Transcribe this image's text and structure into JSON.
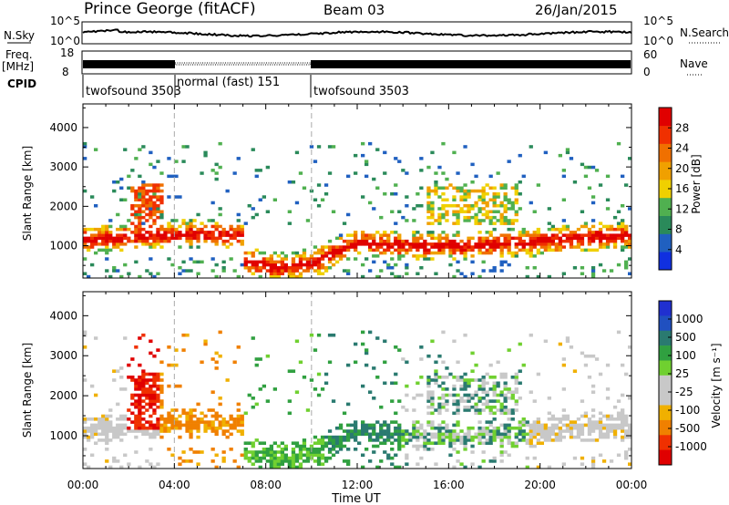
{
  "header": {
    "station": "Prince George (fitACF)",
    "beam": "Beam 03",
    "date": "26/Jan/2015"
  },
  "top_panel": {
    "left_labels": {
      "nsky": "N.Sky",
      "freq_line1": "Freq.",
      "freq_line2": "[MHz]",
      "cpid": "CPID"
    },
    "right_labels": {
      "nsearch": "N.Search",
      "nave": "Nave"
    },
    "nsky_ticks": [
      "10^5",
      "10^0"
    ],
    "freq_ticks": [
      "18",
      "8"
    ],
    "nave_ticks": [
      "60",
      "0"
    ],
    "cpid_segments": [
      {
        "label": "twofsound 3503",
        "start_hour": 0,
        "end_hour": 4
      },
      {
        "label": "normal (fast) 151",
        "start_hour": 4,
        "end_hour": 10
      },
      {
        "label": "twofsound 3503",
        "start_hour": 10,
        "end_hour": 24
      }
    ]
  },
  "colors": {
    "power_scale": [
      "#1030e0",
      "#2060c0",
      "#2a8a5a",
      "#50b050",
      "#f0d000",
      "#f0a000",
      "#f07000",
      "#f03000",
      "#e00000"
    ],
    "velocity_scale": [
      "#e00000",
      "#f03000",
      "#f08000",
      "#f0b000",
      "#c8c8c8",
      "#c8c8c8",
      "#70d030",
      "#30a040",
      "#2a7a70",
      "#2050c0",
      "#2030d0"
    ]
  },
  "chart_data": [
    {
      "type": "heatmap",
      "title": "",
      "xlabel": "",
      "ylabel": "Slant Range [km]",
      "xlim": [
        0,
        24
      ],
      "ylim": [
        180,
        4600
      ],
      "x_ticks": [
        0,
        4,
        8,
        12,
        16,
        20,
        24
      ],
      "y_ticks": [
        1000,
        2000,
        3000,
        4000
      ],
      "y_tick_labels": [
        "1000",
        "2000",
        "3000",
        "4000"
      ],
      "colorbar": {
        "label": "Power [dB]",
        "range": [
          0,
          32
        ],
        "ticks": [
          4,
          8,
          12,
          16,
          20,
          24,
          28
        ],
        "tick_labels": [
          "4",
          "8",
          "12",
          "16",
          "20",
          "24",
          "28"
        ]
      },
      "description_of_values": "backscatter power (dB); main band 800-1500 km all day, near-range 300-900 km 07:00-11:00, patches to 3500 km"
    },
    {
      "type": "heatmap",
      "title": "",
      "xlabel": "Time UT",
      "ylabel": "Slant Range [km]",
      "xlim": [
        0,
        24
      ],
      "ylim": [
        180,
        4600
      ],
      "x_ticks": [
        0,
        4,
        8,
        12,
        16,
        20,
        24
      ],
      "x_tick_labels": [
        "00:00",
        "04:00",
        "08:00",
        "12:00",
        "16:00",
        "20:00",
        "00:00"
      ],
      "y_ticks": [
        1000,
        2000,
        3000,
        4000
      ],
      "y_tick_labels": [
        "1000",
        "2000",
        "3000",
        "4000"
      ],
      "colorbar": {
        "label": "Velocity [m s⁻¹]",
        "range": [
          -1200,
          1200
        ],
        "tick_labels": [
          "1000",
          "500",
          "100",
          "25",
          "-25",
          "-100",
          "-500",
          "-1000"
        ]
      }
    }
  ]
}
